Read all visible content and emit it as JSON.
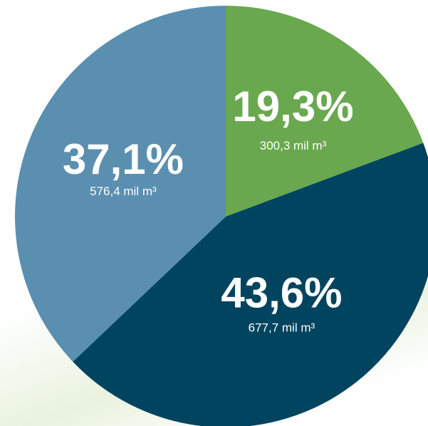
{
  "chart_data": {
    "type": "pie",
    "title": "",
    "slices": [
      {
        "percent_label": "19,3%",
        "value_label": "300,3 mil m³",
        "value": 300.3,
        "percent": 19.3,
        "color": "#6aa84f"
      },
      {
        "percent_label": "43,6%",
        "value_label": "677,7 mil m³",
        "value": 677.7,
        "percent": 43.6,
        "color": "#00445f"
      },
      {
        "percent_label": "37,1%",
        "value_label": "576,4 mil m³",
        "value": 576.4,
        "percent": 37.1,
        "color": "#5a8fb0"
      }
    ],
    "start_angle_deg": 0,
    "direction": "clockwise",
    "legend": "none"
  }
}
